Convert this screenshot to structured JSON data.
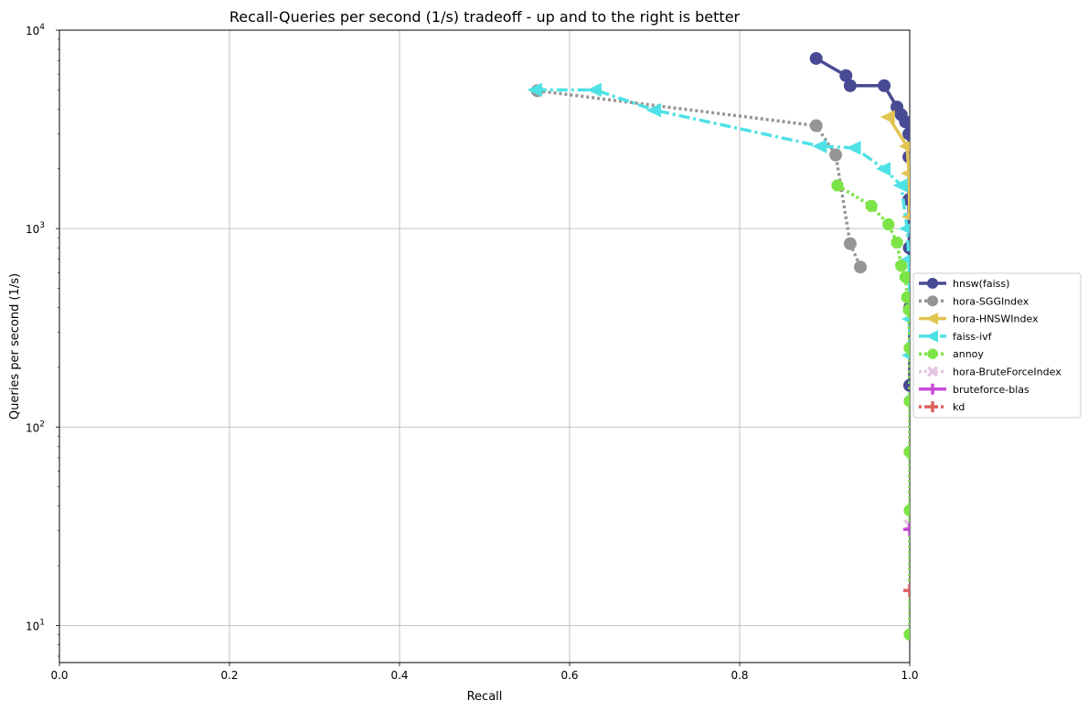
{
  "chart_data": {
    "type": "line",
    "title": "Recall-Queries per second (1/s) tradeoff - up and to the right is better",
    "xlabel": "Recall",
    "ylabel": "Queries per second (1/s)",
    "xlim": [
      0,
      1
    ],
    "ylim": [
      6.5,
      10000
    ],
    "yscale": "log",
    "grid": true,
    "legend_position": "right-outside",
    "x_ticks": [
      {
        "value": 0.0,
        "label": "0.0"
      },
      {
        "value": 0.2,
        "label": "0.2"
      },
      {
        "value": 0.4,
        "label": "0.4"
      },
      {
        "value": 0.6,
        "label": "0.6"
      },
      {
        "value": 0.8,
        "label": "0.8"
      },
      {
        "value": 1.0,
        "label": "1.0"
      }
    ],
    "y_ticks": [
      {
        "value": 10,
        "base": "10",
        "exp": "1"
      },
      {
        "value": 100,
        "base": "10",
        "exp": "2"
      },
      {
        "value": 1000,
        "base": "10",
        "exp": "3"
      },
      {
        "value": 10000,
        "base": "10",
        "exp": "4"
      }
    ],
    "series": [
      {
        "name": "hnsw(faiss)",
        "color": "#484a93",
        "marker": "circle",
        "dash": "solid",
        "points": [
          [
            0.89,
            7200
          ],
          [
            0.925,
            5900
          ],
          [
            0.93,
            5250
          ],
          [
            0.97,
            5250
          ],
          [
            0.985,
            4100
          ],
          [
            0.99,
            3750
          ],
          [
            0.995,
            3450
          ],
          [
            0.999,
            3000
          ],
          [
            0.999,
            2300
          ],
          [
            0.999,
            1400
          ],
          [
            0.9995,
            800
          ],
          [
            1.0,
            400
          ],
          [
            1.0,
            162
          ]
        ]
      },
      {
        "name": "hora-SGGIndex",
        "color": "#959595",
        "marker": "circle",
        "dash": "dotted",
        "points": [
          [
            0.562,
            4950
          ],
          [
            0.89,
            3300
          ],
          [
            0.913,
            2350
          ],
          [
            0.93,
            840
          ],
          [
            0.942,
            640
          ]
        ]
      },
      {
        "name": "hora-HNSWIndex",
        "color": "#e2c453",
        "marker": "triangle-left",
        "dash": "solid",
        "points": [
          [
            0.975,
            3650
          ],
          [
            0.997,
            2600
          ],
          [
            0.999,
            1900
          ],
          [
            1.0,
            1150
          ]
        ]
      },
      {
        "name": "faiss-ivf",
        "color": "#4ee1e5",
        "marker": "triangle-left",
        "dash": "dashdot",
        "points": [
          [
            0.56,
            5000
          ],
          [
            0.63,
            5000
          ],
          [
            0.7,
            3950
          ],
          [
            0.895,
            2600
          ],
          [
            0.935,
            2550
          ],
          [
            0.97,
            2000
          ],
          [
            0.99,
            1650
          ],
          [
            0.997,
            1000
          ],
          [
            0.999,
            700
          ],
          [
            1.0,
            440
          ],
          [
            1.0,
            350
          ],
          [
            1.0,
            230
          ]
        ]
      },
      {
        "name": "annoy",
        "color": "#7de448",
        "marker": "octagon",
        "dash": "dotted",
        "points": [
          [
            0.915,
            1650
          ],
          [
            0.955,
            1300
          ],
          [
            0.975,
            1050
          ],
          [
            0.985,
            850
          ],
          [
            0.99,
            650
          ],
          [
            0.995,
            570
          ],
          [
            0.997,
            450
          ],
          [
            0.999,
            390
          ],
          [
            1.0,
            250
          ],
          [
            1.0,
            135
          ],
          [
            1.0,
            75
          ],
          [
            1.0,
            38
          ],
          [
            1.0,
            9
          ]
        ]
      },
      {
        "name": "hora-BruteForceIndex",
        "color": "#e5c5e2",
        "marker": "x",
        "dash": "dotted",
        "points": [
          [
            1.0,
            32
          ]
        ]
      },
      {
        "name": "bruteforce-blas",
        "color": "#c94ad8",
        "marker": "plus",
        "dash": "solid",
        "points": [
          [
            1.0,
            30.5
          ]
        ]
      },
      {
        "name": "kd",
        "color": "#e06161",
        "marker": "plus",
        "dash": "dotted",
        "points": [
          [
            1.0,
            15
          ]
        ]
      }
    ]
  }
}
